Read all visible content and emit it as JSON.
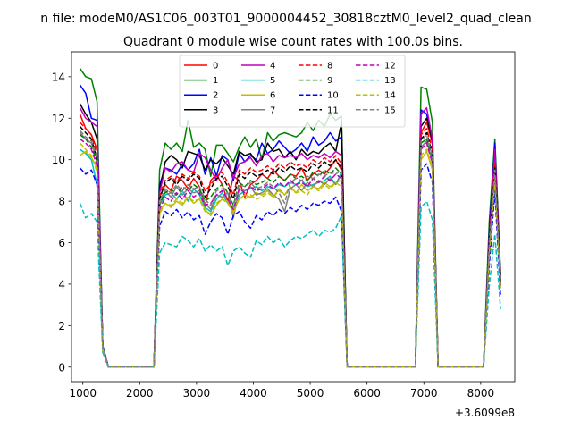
{
  "figure": {
    "suptitle": "n file: modeM0/AS1C06_003T01_9000004452_30818cztM0_level2_quad_clean",
    "title": "Quadrant 0 module wise count rates with 100.0s bins."
  },
  "chart_data": {
    "type": "line",
    "title": "Quadrant 0 module wise count rates with 100.0s bins.",
    "xlabel": "",
    "ylabel": "",
    "x_offset_label": "+3.6099e8",
    "xlim": [
      800,
      8600
    ],
    "ylim": [
      -0.7,
      15.2
    ],
    "x_ticks": [
      1000,
      2000,
      3000,
      4000,
      5000,
      6000,
      7000,
      8000
    ],
    "y_ticks": [
      0,
      2,
      4,
      6,
      8,
      10,
      12,
      14
    ],
    "grid": false,
    "legend": {
      "position": "top-center",
      "columns": 4
    },
    "x": [
      950,
      1050,
      1150,
      1250,
      1350,
      1450,
      2250,
      2350,
      2450,
      2550,
      2650,
      2750,
      2850,
      2950,
      3050,
      3150,
      3250,
      3350,
      3450,
      3550,
      3650,
      3750,
      3850,
      3950,
      4050,
      4150,
      4250,
      4350,
      4450,
      4550,
      4650,
      4750,
      4850,
      4950,
      5050,
      5150,
      5250,
      5350,
      5450,
      5550,
      5650,
      6850,
      6950,
      7050,
      7150,
      7250,
      8050,
      8150,
      8250,
      8350
    ],
    "series": [
      {
        "name": "0",
        "color": "#ff0000",
        "dash": false,
        "values": [
          12.2,
          11.5,
          11.2,
          10.5,
          1.0,
          0,
          0,
          8.2,
          8.8,
          8.5,
          9.2,
          9.0,
          8.6,
          9.1,
          8.7,
          7.7,
          9.0,
          9.3,
          8.8,
          8.0,
          9.2,
          9.0,
          8.2,
          8.8,
          9.0,
          9.3,
          9.1,
          9.5,
          9.2,
          9.0,
          9.3,
          9.2,
          9.6,
          9.0,
          9.3,
          9.5,
          9.3,
          9.6,
          10.0,
          9.5,
          0,
          0,
          11.3,
          11.8,
          10.8,
          0,
          0,
          5.5,
          10.0,
          4.0
        ]
      },
      {
        "name": "1",
        "color": "#008000",
        "dash": false,
        "values": [
          14.4,
          14.0,
          13.9,
          12.8,
          1.0,
          0,
          0,
          9.5,
          10.8,
          10.5,
          10.8,
          10.4,
          11.9,
          10.6,
          10.8,
          10.5,
          9.2,
          10.7,
          10.7,
          10.3,
          9.9,
          10.6,
          11.1,
          10.6,
          11.0,
          10.0,
          11.3,
          10.9,
          11.2,
          11.3,
          11.2,
          11.1,
          11.3,
          11.8,
          11.4,
          11.9,
          11.6,
          12.2,
          11.9,
          12.1,
          0,
          0,
          13.5,
          13.4,
          11.8,
          0,
          0,
          7.0,
          11.0,
          4.5
        ]
      },
      {
        "name": "2",
        "color": "#0000ff",
        "dash": false,
        "values": [
          13.6,
          13.2,
          12.0,
          11.9,
          1.0,
          0,
          0,
          8.8,
          9.6,
          9.5,
          9.3,
          9.8,
          9.5,
          9.8,
          10.5,
          9.3,
          10.1,
          9.2,
          10.2,
          10.0,
          9.0,
          10.3,
          9.9,
          10.2,
          10.0,
          10.8,
          10.3,
          10.5,
          10.9,
          10.6,
          10.3,
          10.5,
          10.8,
          10.4,
          11.1,
          10.7,
          10.9,
          11.3,
          10.9,
          11.1,
          0,
          0,
          12.4,
          12.2,
          10.8,
          0,
          0,
          6.5,
          10.8,
          4.2
        ]
      },
      {
        "name": "3",
        "color": "#000000",
        "dash": false,
        "values": [
          12.7,
          12.2,
          11.8,
          11.0,
          1.0,
          0,
          0,
          8.5,
          9.9,
          10.2,
          10.0,
          9.6,
          10.4,
          10.3,
          10.2,
          9.5,
          10.0,
          9.8,
          10.1,
          9.7,
          9.3,
          10.4,
          10.2,
          10.3,
          9.9,
          10.0,
          10.8,
          10.4,
          10.5,
          10.1,
          10.4,
          10.0,
          10.5,
          10.2,
          10.4,
          10.3,
          10.6,
          10.8,
          10.4,
          11.8,
          0,
          0,
          11.6,
          12.0,
          10.9,
          0,
          0,
          6.2,
          10.5,
          4.4
        ]
      },
      {
        "name": "4",
        "color": "#bf00bf",
        "dash": false,
        "values": [
          12.5,
          12.0,
          11.8,
          11.6,
          1.0,
          0,
          0,
          8.4,
          9.6,
          9.4,
          9.8,
          9.9,
          9.5,
          9.4,
          10.3,
          10.1,
          9.5,
          9.0,
          9.6,
          10.0,
          9.1,
          9.8,
          9.9,
          10.1,
          9.7,
          10.2,
          10.3,
          9.9,
          10.2,
          10.1,
          10.2,
          10.1,
          10.3,
          10.0,
          10.2,
          10.1,
          10.3,
          10.1,
          10.4,
          10.2,
          0,
          0,
          12.2,
          12.5,
          11.0,
          0,
          0,
          6.1,
          10.5,
          4.1
        ]
      },
      {
        "name": "5",
        "color": "#00bfbf",
        "dash": false,
        "values": [
          10.5,
          10.3,
          10.0,
          8.8,
          0.8,
          0,
          0,
          7.8,
          8.3,
          8.4,
          8.1,
          8.5,
          8.0,
          8.6,
          8.3,
          7.7,
          7.5,
          8.1,
          8.4,
          7.9,
          7.5,
          8.3,
          8.5,
          8.6,
          8.7,
          8.5,
          8.7,
          8.6,
          8.8,
          8.7,
          8.9,
          8.8,
          9.0,
          8.7,
          8.8,
          8.9,
          9.0,
          9.2,
          8.8,
          9.4,
          0,
          0,
          10.8,
          11.0,
          9.8,
          0,
          0,
          5.5,
          9.0,
          3.8
        ]
      },
      {
        "name": "6",
        "color": "#bfbf00",
        "dash": false,
        "values": [
          10.2,
          10.4,
          10.1,
          9.6,
          0.8,
          0,
          0,
          7.5,
          7.9,
          7.7,
          8.0,
          7.8,
          8.2,
          7.9,
          8.1,
          7.6,
          7.3,
          7.8,
          8.1,
          8.0,
          7.5,
          8.1,
          8.3,
          8.2,
          8.4,
          8.3,
          8.5,
          8.2,
          8.6,
          8.3,
          8.7,
          8.4,
          8.8,
          8.5,
          8.7,
          8.6,
          8.9,
          8.7,
          8.9,
          9.0,
          0,
          0,
          10.0,
          10.4,
          9.5,
          0,
          0,
          5.3,
          9.2,
          3.9
        ]
      },
      {
        "name": "7",
        "color": "#808080",
        "dash": false,
        "values": [
          11.3,
          11.0,
          10.8,
          10.0,
          0.9,
          0,
          0,
          7.8,
          8.5,
          8.2,
          8.7,
          8.3,
          8.6,
          8.4,
          8.5,
          7.9,
          7.6,
          8.3,
          8.2,
          8.4,
          7.2,
          8.6,
          8.5,
          8.7,
          8.3,
          8.4,
          8.6,
          8.3,
          8.1,
          7.5,
          8.6,
          8.8,
          8.5,
          8.9,
          8.7,
          9.0,
          8.8,
          9.1,
          8.8,
          9.3,
          0,
          0,
          10.6,
          10.9,
          9.9,
          0,
          0,
          5.8,
          9.4,
          3.9
        ]
      },
      {
        "name": "8",
        "color": "#ff0000",
        "dash": true,
        "values": [
          11.8,
          11.5,
          11.2,
          10.2,
          1.0,
          0,
          0,
          8.3,
          9.0,
          9.2,
          8.9,
          9.3,
          9.1,
          9.4,
          9.2,
          8.5,
          8.8,
          9.2,
          9.4,
          8.9,
          8.3,
          9.5,
          9.3,
          9.6,
          9.4,
          9.5,
          9.7,
          9.5,
          9.8,
          9.6,
          9.9,
          9.7,
          9.8,
          9.6,
          10.0,
          9.8,
          10.1,
          9.9,
          10.2,
          9.8,
          0,
          0,
          11.2,
          11.5,
          10.5,
          0,
          0,
          6.0,
          9.8,
          4.1
        ]
      },
      {
        "name": "9",
        "color": "#008000",
        "dash": true,
        "values": [
          11.2,
          11.0,
          10.6,
          9.9,
          0.9,
          0,
          0,
          7.9,
          8.4,
          8.6,
          8.3,
          8.7,
          8.5,
          8.8,
          8.6,
          8.0,
          8.2,
          8.6,
          8.8,
          8.4,
          7.8,
          8.9,
          8.7,
          9.0,
          8.8,
          8.9,
          9.1,
          8.9,
          9.2,
          9.0,
          9.3,
          9.1,
          9.2,
          9.0,
          9.4,
          9.2,
          9.5,
          9.3,
          9.6,
          9.3,
          0,
          0,
          10.8,
          11.0,
          10.1,
          0,
          0,
          5.8,
          9.5,
          4.0
        ]
      },
      {
        "name": "10",
        "color": "#0000ff",
        "dash": true,
        "values": [
          9.6,
          9.3,
          9.5,
          8.8,
          0.8,
          0,
          0,
          6.8,
          7.5,
          7.3,
          7.6,
          7.2,
          7.5,
          7.1,
          7.3,
          6.4,
          7.0,
          7.4,
          7.2,
          6.4,
          7.3,
          7.5,
          7.0,
          6.7,
          7.3,
          7.1,
          7.5,
          7.3,
          7.6,
          7.4,
          7.7,
          7.5,
          7.8,
          7.6,
          7.9,
          7.8,
          8.0,
          7.9,
          8.2,
          7.5,
          0,
          0,
          9.5,
          9.8,
          8.9,
          0,
          0,
          4.9,
          8.5,
          3.4
        ]
      },
      {
        "name": "11",
        "color": "#000000",
        "dash": true,
        "values": [
          11.6,
          11.3,
          11.0,
          10.0,
          1.0,
          0,
          0,
          8.1,
          8.9,
          9.1,
          8.8,
          9.2,
          9.0,
          9.3,
          9.1,
          8.2,
          8.6,
          9.1,
          9.2,
          8.7,
          8.1,
          9.3,
          9.1,
          9.4,
          9.2,
          9.3,
          9.5,
          9.3,
          9.6,
          9.4,
          9.7,
          9.5,
          9.6,
          9.4,
          9.8,
          9.6,
          9.9,
          9.7,
          10.0,
          9.6,
          0,
          0,
          11.0,
          11.3,
          10.3,
          0,
          0,
          5.9,
          9.6,
          4.1
        ]
      },
      {
        "name": "12",
        "color": "#bf00bf",
        "dash": true,
        "values": [
          11.0,
          10.8,
          10.5,
          9.7,
          0.9,
          0,
          0,
          7.6,
          8.2,
          8.0,
          8.4,
          8.1,
          8.5,
          8.2,
          8.4,
          7.8,
          7.9,
          8.3,
          8.5,
          8.1,
          7.6,
          8.6,
          8.4,
          8.7,
          8.5,
          8.6,
          8.8,
          8.6,
          8.9,
          8.7,
          9.0,
          8.8,
          8.9,
          8.7,
          9.1,
          8.9,
          9.2,
          9.0,
          9.3,
          9.1,
          0,
          0,
          10.5,
          10.8,
          9.8,
          0,
          0,
          5.6,
          9.3,
          3.9
        ]
      },
      {
        "name": "13",
        "color": "#00bfbf",
        "dash": true,
        "values": [
          7.9,
          7.2,
          7.4,
          7.0,
          0.7,
          0,
          0,
          5.5,
          6.0,
          5.9,
          5.8,
          6.3,
          6.1,
          5.8,
          6.2,
          5.6,
          5.9,
          5.6,
          5.8,
          4.9,
          5.6,
          5.8,
          5.5,
          5.3,
          6.1,
          5.9,
          6.3,
          6.0,
          6.2,
          5.8,
          6.1,
          6.3,
          6.2,
          6.4,
          6.6,
          6.3,
          6.6,
          6.5,
          6.7,
          7.3,
          0,
          0,
          7.7,
          8.0,
          7.1,
          0,
          0,
          3.9,
          6.4,
          2.8
        ]
      },
      {
        "name": "14",
        "color": "#bfbf00",
        "dash": true,
        "values": [
          10.8,
          10.5,
          10.2,
          9.4,
          0.9,
          0,
          0,
          7.4,
          7.9,
          7.8,
          8.1,
          7.9,
          8.2,
          8.0,
          8.1,
          7.5,
          7.4,
          7.9,
          8.1,
          7.9,
          7.4,
          8.2,
          8.1,
          8.3,
          8.1,
          8.2,
          8.4,
          8.2,
          8.5,
          8.3,
          8.6,
          8.4,
          8.5,
          8.3,
          8.7,
          8.5,
          8.8,
          8.6,
          8.9,
          8.7,
          0,
          0,
          10.2,
          10.5,
          9.6,
          0,
          0,
          5.4,
          9.0,
          3.8
        ]
      },
      {
        "name": "15",
        "color": "#808080",
        "dash": true,
        "values": [
          11.4,
          11.1,
          10.9,
          10.1,
          1.0,
          0,
          0,
          8.0,
          8.6,
          8.4,
          8.8,
          8.5,
          8.8,
          8.6,
          8.7,
          8.1,
          7.8,
          8.5,
          8.6,
          8.4,
          7.7,
          8.8,
          8.7,
          8.9,
          8.6,
          8.7,
          8.9,
          8.7,
          8.4,
          7.9,
          8.9,
          9.1,
          9.0,
          9.2,
          9.1,
          9.3,
          9.2,
          9.4,
          9.3,
          9.5,
          0,
          0,
          10.9,
          11.2,
          10.2,
          0,
          0,
          5.9,
          9.5,
          4.0
        ]
      }
    ]
  }
}
